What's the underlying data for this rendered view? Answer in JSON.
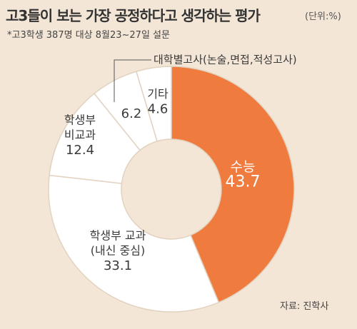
{
  "header": {
    "title": "고3들이 보는 가장 공정하다고 생각하는 평가",
    "unit": "(단위:%)",
    "subtitle": "*고3학생 387명 대상 8월23~27일 설문"
  },
  "footer": {
    "source": "자료: 진학사"
  },
  "colors": {
    "background": "#f3e6d6",
    "accent": "#ef7c3e",
    "white": "#ffffff",
    "separator": "#e2d2c0"
  },
  "chart_data": {
    "type": "pie",
    "hole": true,
    "slices": [
      {
        "name": "수능",
        "value": 43.7,
        "label_lines": [
          "수능"
        ],
        "value_label": "43.7",
        "color": "#ef7c3e"
      },
      {
        "name": "학생부 교과(내신 중심)",
        "value": 33.1,
        "label_lines": [
          "학생부 교과",
          "(내신 중심)"
        ],
        "value_label": "33.1",
        "color": "#ffffff"
      },
      {
        "name": "학생부 비교과",
        "value": 12.4,
        "label_lines": [
          "학생부",
          "비교과"
        ],
        "value_label": "12.4",
        "color": "#ffffff"
      },
      {
        "name": "대학별고사(논술,면접,적성고사)",
        "value": 6.2,
        "label_lines": [],
        "value_label": "6.2",
        "callout": "대학별고사(논술,면접,적성고사)",
        "color": "#ffffff"
      },
      {
        "name": "기타",
        "value": 4.6,
        "label_lines": [
          "기타"
        ],
        "value_label": "4.6",
        "color": "#ffffff"
      }
    ]
  }
}
